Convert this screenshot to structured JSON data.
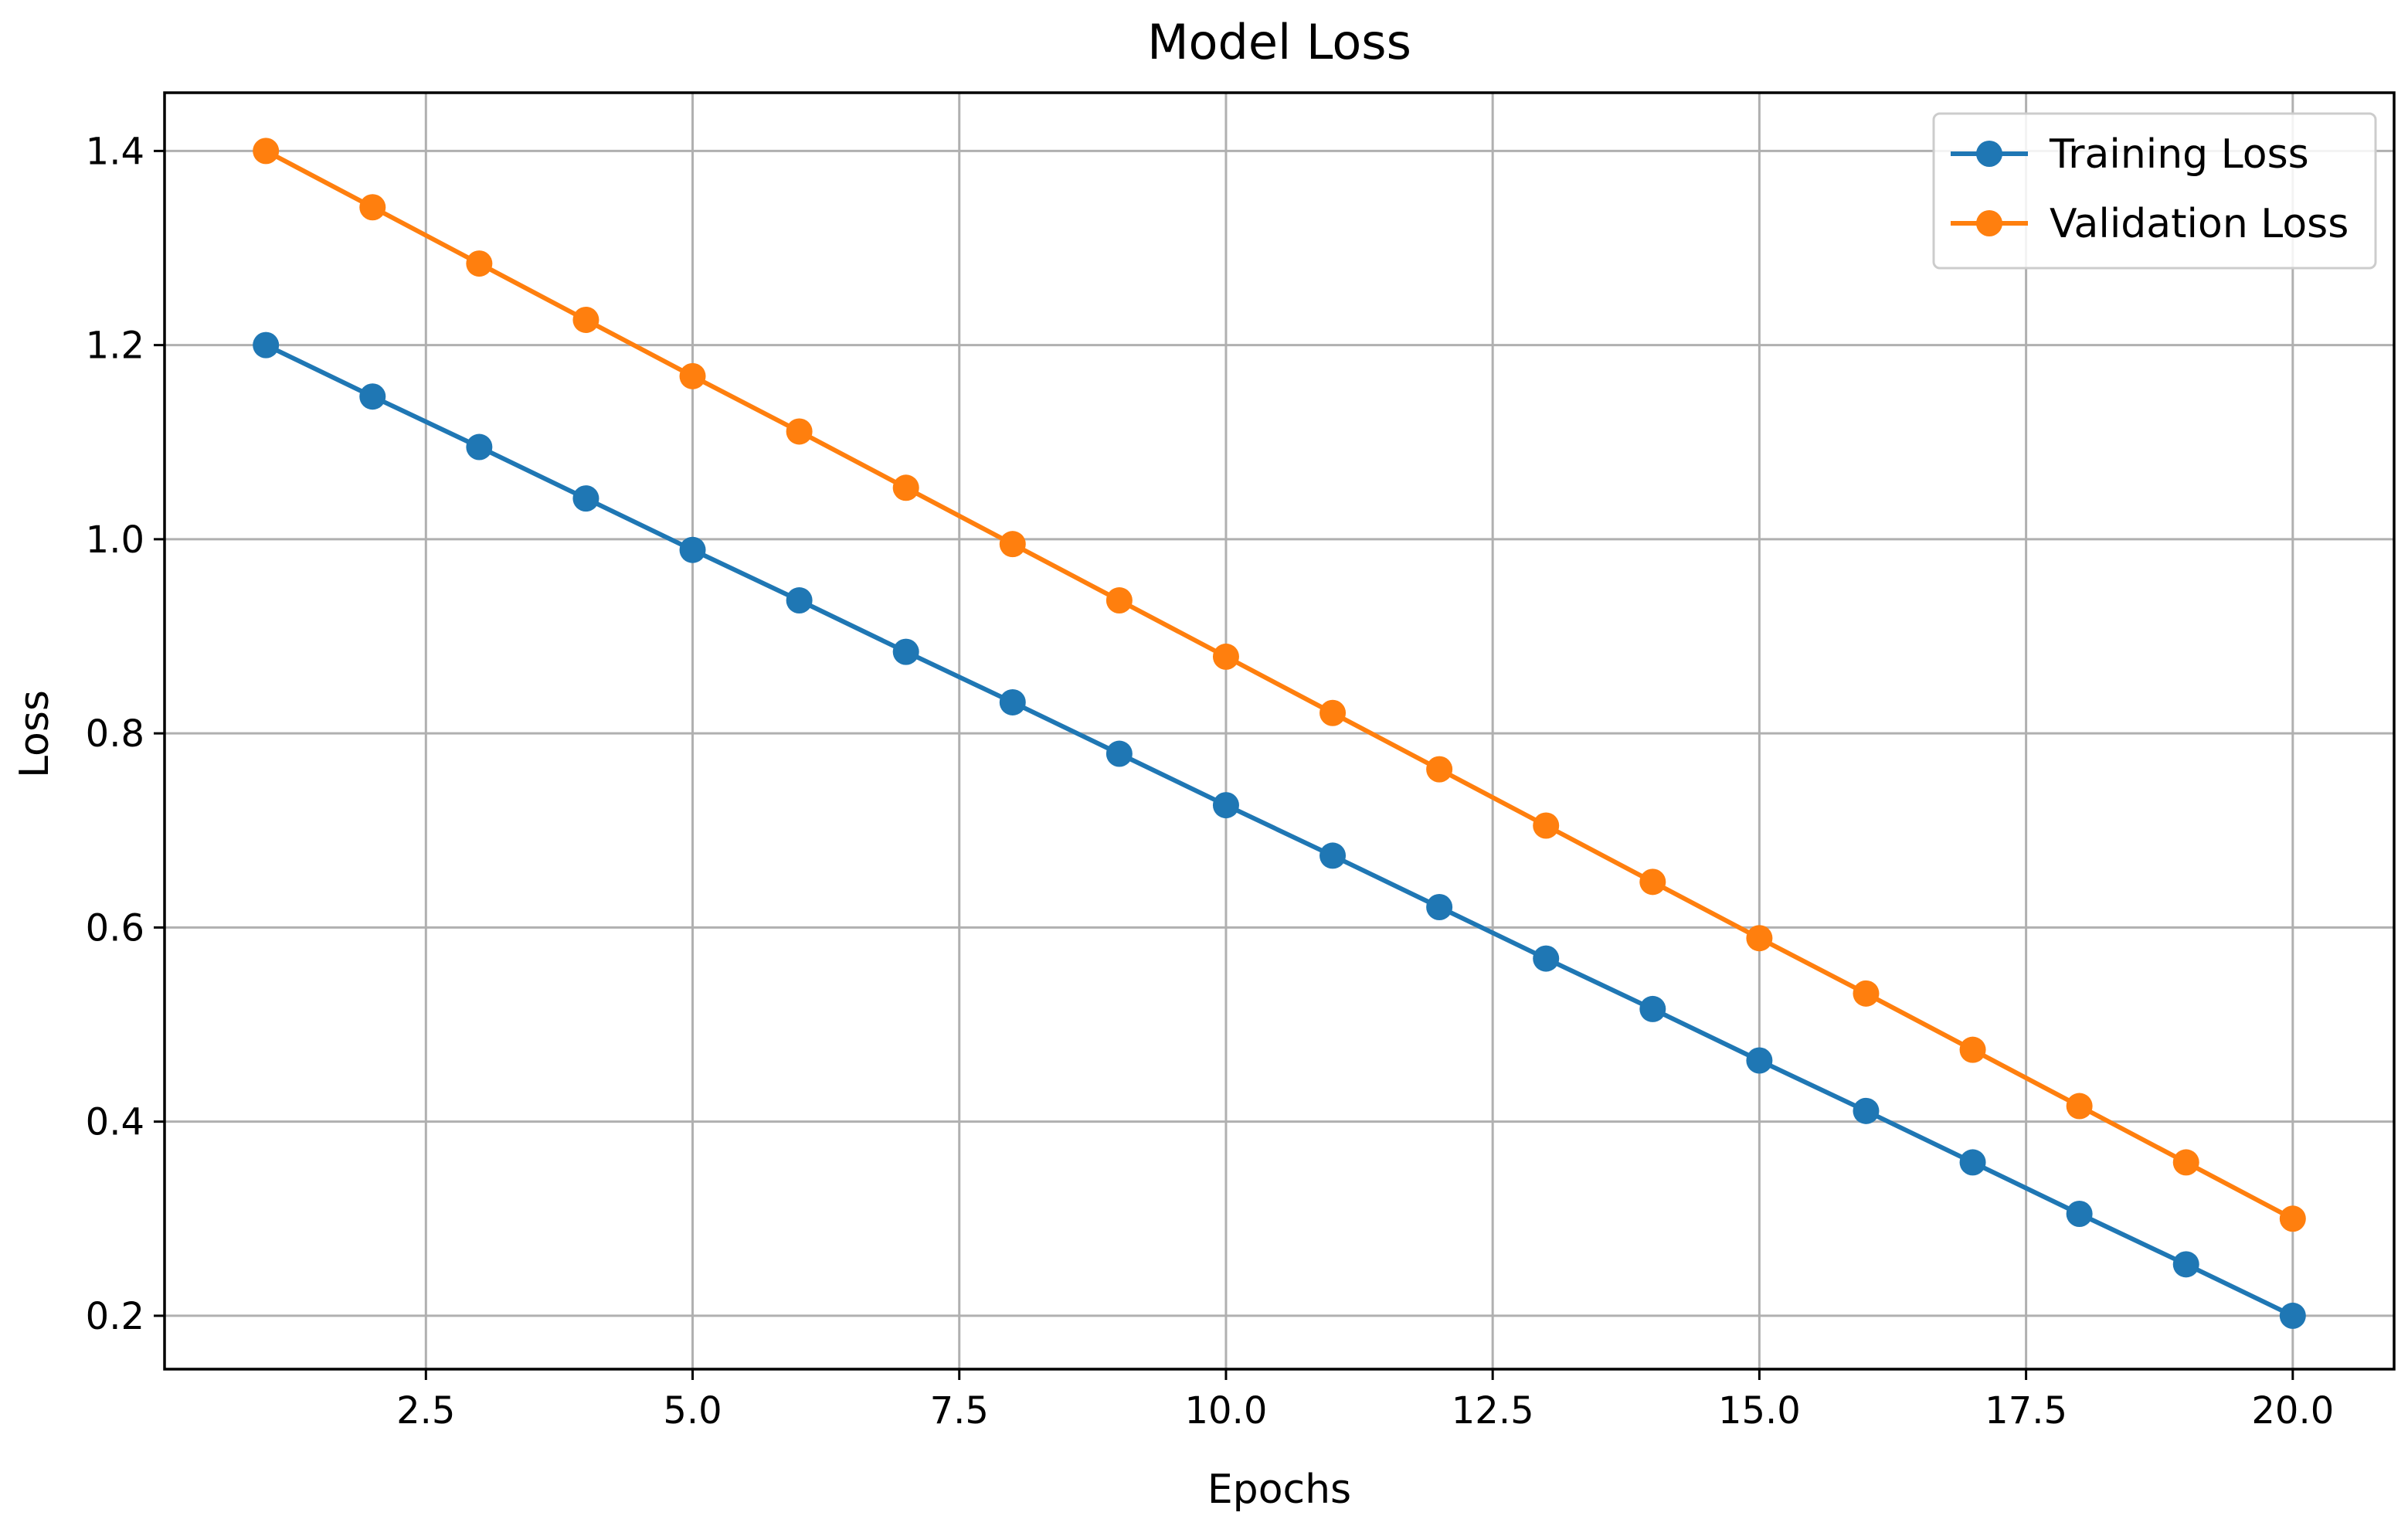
{
  "chart_data": {
    "type": "line",
    "title": "Model Loss",
    "xlabel": "Epochs",
    "ylabel": "Loss",
    "xlim": [
      0.05,
      20.95
    ],
    "ylim": [
      0.145,
      1.46
    ],
    "xticks": [
      2.5,
      5.0,
      7.5,
      10.0,
      12.5,
      15.0,
      17.5,
      20.0
    ],
    "xtick_labels": [
      "2.5",
      "5.0",
      "7.5",
      "10.0",
      "12.5",
      "15.0",
      "17.5",
      "20.0"
    ],
    "yticks": [
      0.2,
      0.4,
      0.6,
      0.8,
      1.0,
      1.2,
      1.4
    ],
    "ytick_labels": [
      "0.2",
      "0.4",
      "0.6",
      "0.8",
      "1.0",
      "1.2",
      "1.4"
    ],
    "grid": true,
    "legend_position": "top-right",
    "x": [
      1,
      2,
      3,
      4,
      5,
      6,
      7,
      8,
      9,
      10,
      11,
      12,
      13,
      14,
      15,
      16,
      17,
      18,
      19,
      20
    ],
    "series": [
      {
        "name": "Training Loss",
        "color": "#1f77b4",
        "marker": "circle",
        "values": [
          1.2,
          1.147,
          1.095,
          1.042,
          0.989,
          0.937,
          0.884,
          0.832,
          0.779,
          0.726,
          0.674,
          0.621,
          0.568,
          0.516,
          0.463,
          0.411,
          0.358,
          0.305,
          0.253,
          0.2
        ]
      },
      {
        "name": "Validation Loss",
        "color": "#ff7f0e",
        "marker": "circle",
        "values": [
          1.4,
          1.342,
          1.284,
          1.226,
          1.168,
          1.111,
          1.053,
          0.995,
          0.937,
          0.879,
          0.821,
          0.763,
          0.705,
          0.647,
          0.589,
          0.532,
          0.474,
          0.416,
          0.358,
          0.3
        ]
      }
    ]
  }
}
